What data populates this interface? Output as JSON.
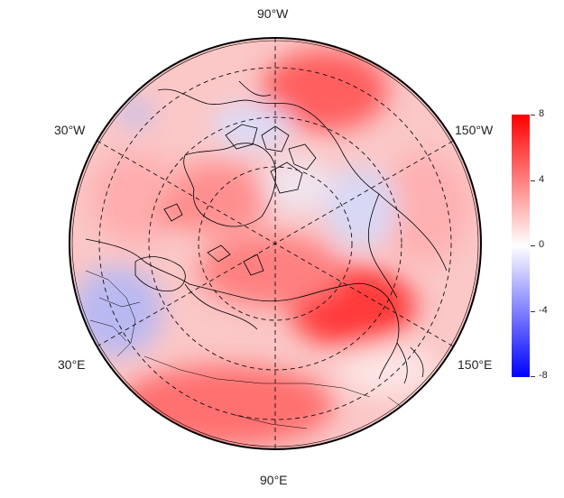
{
  "map": {
    "projection": "north-polar-stereographic",
    "longitude_labels": [
      {
        "id": "lon-90w-label",
        "text": "90°W"
      },
      {
        "id": "lon-30w-label",
        "text": "30°W"
      },
      {
        "id": "lon-150w-label",
        "text": "150°W"
      },
      {
        "id": "lon-30e-label",
        "text": "30°E"
      },
      {
        "id": "lon-150e-label",
        "text": "150°E"
      },
      {
        "id": "lon-90e-label",
        "text": "90°E"
      }
    ],
    "graticule": "dashed",
    "field": "temperature-anomaly-style field, mostly positive (red) with blue negative patches over Eastern Europe, Baffin Bay and the Beaufort/Alaska sector"
  },
  "colorbar": {
    "min": -8,
    "max": 8,
    "ticks": [
      "8",
      "4",
      "0",
      "-4",
      "-8"
    ],
    "colors": {
      "high": "#ff0000",
      "mid": "#ffffff",
      "low": "#0000ff"
    }
  }
}
